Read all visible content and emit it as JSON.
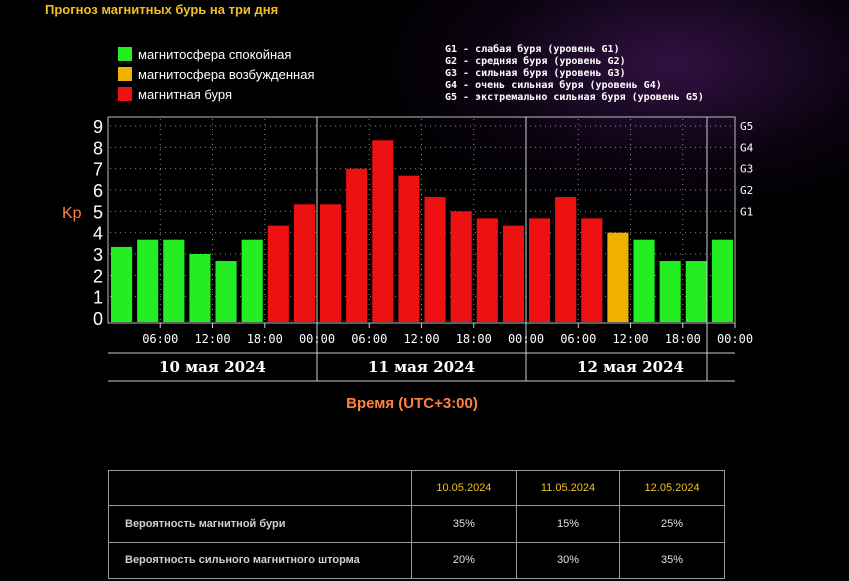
{
  "page_title": "Прогноз магнитных бурь на три дня",
  "legend": [
    {
      "label": "магнитосфера спокойная",
      "color": "#22ee22"
    },
    {
      "label": "магнитосфера возбужденная",
      "color": "#f0b000"
    },
    {
      "label": "магнитная буря",
      "color": "#ee1111"
    }
  ],
  "g_levels": [
    "G1 - слабая буря (уровень G1)",
    "G2 - средняя буря (уровень G2)",
    "G3 - сильная буря (уровень G3)",
    "G4 - очень сильная буря (уровень G4)",
    "G5 - экстремально сильная буря (уровень G5)"
  ],
  "chart_data": {
    "type": "bar",
    "ylabel": "Kp",
    "xlabel": "Время (UTC+3:00)",
    "ylim": [
      0,
      9
    ],
    "y_ticks": [
      "0",
      "1",
      "2",
      "3",
      "4",
      "5",
      "6",
      "7",
      "8",
      "9"
    ],
    "g_ticks": [
      {
        "label": "G1",
        "kp": 5
      },
      {
        "label": "G2",
        "kp": 6
      },
      {
        "label": "G3",
        "kp": 7
      },
      {
        "label": "G4",
        "kp": 8
      },
      {
        "label": "G5",
        "kp": 9
      }
    ],
    "x_ticks": [
      "06:00",
      "12:00",
      "18:00",
      "00:00",
      "06:00",
      "12:00",
      "18:00",
      "00:00",
      "06:00",
      "12:00",
      "18:00",
      "00:00"
    ],
    "days": [
      "10 мая 2024",
      "11 мая 2024",
      "12 мая 2024"
    ],
    "values": [
      3.33,
      3.67,
      3.67,
      3.0,
      2.67,
      3.67,
      4.33,
      5.33,
      5.33,
      7.0,
      8.33,
      6.67,
      5.67,
      5.0,
      4.67,
      4.33,
      4.67,
      5.67,
      4.67,
      4.0,
      3.67,
      2.67,
      2.67,
      3.67
    ],
    "levels": [
      "quiet",
      "quiet",
      "quiet",
      "quiet",
      "quiet",
      "quiet",
      "storm",
      "storm",
      "storm",
      "storm",
      "storm",
      "storm",
      "storm",
      "storm",
      "storm",
      "storm",
      "storm",
      "storm",
      "storm",
      "active",
      "quiet",
      "quiet",
      "quiet",
      "quiet"
    ],
    "level_colors": {
      "quiet": "#22ee22",
      "active": "#f0b000",
      "storm": "#ee1111"
    }
  },
  "table": {
    "dates": [
      "10.05.2024",
      "11.05.2024",
      "12.05.2024"
    ],
    "rows": [
      {
        "label": "Вероятность магнитной бури",
        "values": [
          "35%",
          "15%",
          "25%"
        ]
      },
      {
        "label": "Вероятность сильного магнитного шторма",
        "values": [
          "20%",
          "30%",
          "35%"
        ]
      }
    ]
  }
}
